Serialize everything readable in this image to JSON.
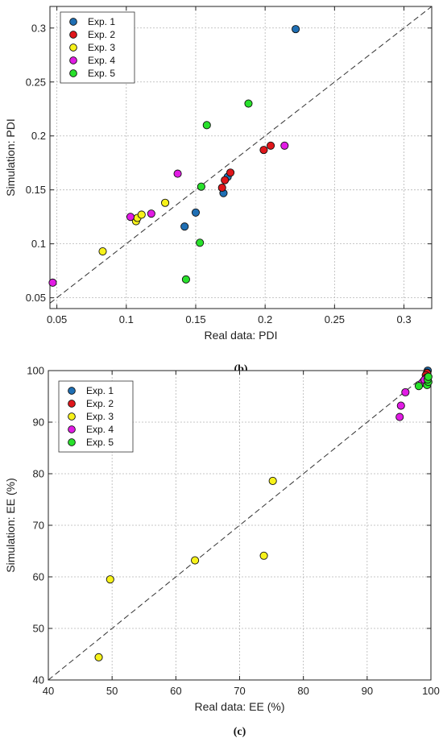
{
  "colors": {
    "exp1": "#1f6fb4",
    "exp2": "#e0161b",
    "exp3": "#f7f21a",
    "exp4": "#e11be4",
    "exp5": "#28e12b"
  },
  "chart_data": [
    {
      "type": "scatter",
      "panel_label": "(b)",
      "xlabel": "Real data: PDI",
      "ylabel": "Simulation: PDI",
      "xlim": [
        0.045,
        0.32
      ],
      "ylim": [
        0.04,
        0.32
      ],
      "xticks": [
        0.05,
        0.1,
        0.15,
        0.2,
        0.25,
        0.3
      ],
      "yticks": [
        0.05,
        0.1,
        0.15,
        0.2,
        0.25,
        0.3
      ],
      "xtick_labels": [
        "0.05",
        "0.1",
        "0.15",
        "0.2",
        "0.25",
        "0.3"
      ],
      "ytick_labels": [
        "0.05",
        "0.1",
        "0.15",
        "0.2",
        "0.25",
        "0.3"
      ],
      "grid": true,
      "diagonal": true,
      "legend_position": "top-left",
      "series": [
        {
          "name": "Exp. 1",
          "color_key": "exp1",
          "points": [
            [
              0.222,
              0.299
            ],
            [
              0.15,
              0.129
            ],
            [
              0.142,
              0.116
            ],
            [
              0.17,
              0.147
            ],
            [
              0.173,
              0.162
            ]
          ]
        },
        {
          "name": "Exp. 2",
          "color_key": "exp2",
          "points": [
            [
              0.199,
              0.187
            ],
            [
              0.204,
              0.191
            ],
            [
              0.175,
              0.166
            ],
            [
              0.171,
              0.159
            ],
            [
              0.169,
              0.152
            ]
          ]
        },
        {
          "name": "Exp. 3",
          "color_key": "exp3",
          "points": [
            [
              0.083,
              0.093
            ],
            [
              0.107,
              0.121
            ],
            [
              0.108,
              0.124
            ],
            [
              0.111,
              0.127
            ],
            [
              0.128,
              0.138
            ]
          ]
        },
        {
          "name": "Exp. 4",
          "color_key": "exp4",
          "points": [
            [
              0.047,
              0.064
            ],
            [
              0.103,
              0.125
            ],
            [
              0.118,
              0.128
            ],
            [
              0.137,
              0.165
            ],
            [
              0.214,
              0.191
            ]
          ]
        },
        {
          "name": "Exp. 5",
          "color_key": "exp5",
          "points": [
            [
              0.188,
              0.23
            ],
            [
              0.158,
              0.21
            ],
            [
              0.154,
              0.153
            ],
            [
              0.153,
              0.101
            ],
            [
              0.143,
              0.067
            ]
          ]
        }
      ]
    },
    {
      "type": "scatter",
      "panel_label": "(c)",
      "xlabel": "Real data: EE (%)",
      "ylabel": "Simulation: EE (%)",
      "xlim": [
        40,
        100
      ],
      "ylim": [
        40,
        100
      ],
      "xticks": [
        40,
        50,
        60,
        70,
        80,
        90,
        100
      ],
      "yticks": [
        40,
        50,
        60,
        70,
        80,
        90,
        100
      ],
      "xtick_labels": [
        "40",
        "50",
        "60",
        "70",
        "80",
        "90",
        "100"
      ],
      "ytick_labels": [
        "40",
        "50",
        "60",
        "70",
        "80",
        "90",
        "100"
      ],
      "grid": true,
      "diagonal": true,
      "legend_position": "top-left",
      "series": [
        {
          "name": "Exp. 1",
          "color_key": "exp1",
          "points": [
            [
              99.5,
              100.0
            ],
            [
              99.4,
              99.6
            ],
            [
              99.3,
              99.3
            ]
          ]
        },
        {
          "name": "Exp. 2",
          "color_key": "exp2",
          "points": [
            [
              99.4,
              99.5
            ],
            [
              99.2,
              99.1
            ],
            [
              99.3,
              98.6
            ]
          ]
        },
        {
          "name": "Exp. 3",
          "color_key": "exp3",
          "points": [
            [
              47.9,
              44.4
            ],
            [
              49.7,
              59.5
            ],
            [
              63.0,
              63.2
            ],
            [
              73.8,
              64.1
            ],
            [
              75.2,
              78.6
            ]
          ]
        },
        {
          "name": "Exp. 4",
          "color_key": "exp4",
          "points": [
            [
              95.1,
              91.0
            ],
            [
              95.3,
              93.2
            ],
            [
              96.0,
              95.8
            ],
            [
              98.6,
              97.6
            ],
            [
              99.0,
              98.2
            ]
          ]
        },
        {
          "name": "Exp. 5",
          "color_key": "exp5",
          "points": [
            [
              98.1,
              97.0
            ],
            [
              99.4,
              97.2
            ],
            [
              99.6,
              97.8
            ],
            [
              99.5,
              98.3
            ],
            [
              99.6,
              98.8
            ]
          ]
        }
      ]
    }
  ]
}
